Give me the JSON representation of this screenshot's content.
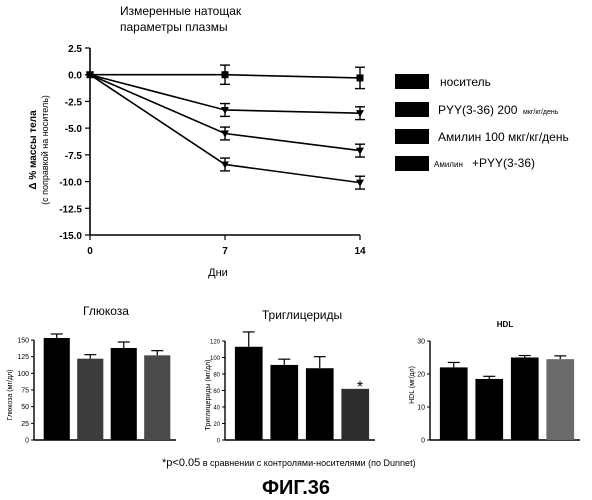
{
  "main_chart": {
    "title_line1": "Измеренные натощак",
    "title_line2": "параметры плазмы",
    "ylabel_line1": "Δ %  массы тела",
    "ylabel_line2": "(с поправкой на носитель)",
    "xlabel": "Дни",
    "legend": [
      {
        "label": "носитель",
        "small": ""
      },
      {
        "label": "PYY(3-36) 200",
        "small": "мкг/кг/день"
      },
      {
        "label": "Амилин 100 мкг/кг/день",
        "small": ""
      },
      {
        "label": "+PYY(3-36)",
        "small": "Амилин"
      }
    ]
  },
  "bar_panels": {
    "glucose": {
      "title": "Глюкоза",
      "ylabel": "Глюкоза (мг/дл)",
      "star": "*"
    },
    "triglycerides": {
      "title": "Триглицериды",
      "ylabel": "Триглицериды (мг/дл)",
      "star": "*"
    },
    "hdl": {
      "title": "HDL",
      "ylabel": "HDL      (мг/дл)"
    }
  },
  "footnote_main": "*p<0.05",
  "footnote_rest": " в сравнении с контролями-носителями (по Dunnet)",
  "figure_label": "ФИГ.36",
  "chart_data": [
    {
      "type": "line",
      "ylabel": "Δ % массы тела (с поправкой на носитель)",
      "xlabel": "Дни",
      "x": [
        0,
        7,
        14
      ],
      "xticks": [
        0,
        7,
        14
      ],
      "ylim": [
        -15.0,
        2.5
      ],
      "yticks": [
        2.5,
        0.0,
        -2.5,
        -5.0,
        -7.5,
        -10.0,
        -12.5,
        -15.0
      ],
      "series": [
        {
          "name": "носитель",
          "values": [
            0.0,
            0.0,
            -0.3
          ],
          "err": [
            0,
            0.9,
            1.0
          ],
          "marker": "square"
        },
        {
          "name": "PYY(3-36) 200 мкг/кг/день",
          "values": [
            0.0,
            -3.3,
            -3.6
          ],
          "err": [
            0,
            0.6,
            0.6
          ],
          "marker": "triangle"
        },
        {
          "name": "Амилин 100 мкг/кг/день",
          "values": [
            0.0,
            -5.5,
            -7.1
          ],
          "err": [
            0,
            0.6,
            0.6
          ],
          "marker": "triangle"
        },
        {
          "name": "Амилин +PYY(3-36)",
          "values": [
            0.0,
            -8.4,
            -10.1
          ],
          "err": [
            0,
            0.6,
            0.6
          ],
          "marker": "triangle"
        }
      ],
      "grid": false,
      "legend_position": "right"
    },
    {
      "type": "bar",
      "title": "Глюкоза",
      "ylabel": "Глюкоза (мг/дл)",
      "ylim": [
        0,
        150
      ],
      "yticks": [
        0,
        25,
        50,
        75,
        100,
        125,
        150
      ],
      "values": [
        153,
        122,
        138,
        127
      ],
      "err": [
        6,
        6,
        9,
        7
      ],
      "significant": [
        false,
        true,
        false,
        false
      ],
      "fills": [
        "#000000",
        "#3c3c3c",
        "#000000",
        "#4a4a4a"
      ]
    },
    {
      "type": "bar",
      "title": "Триглицериды",
      "ylabel": "Триглицериды (мг/дл)",
      "ylim": [
        0,
        120
      ],
      "yticks": [
        0,
        20,
        40,
        60,
        80,
        100,
        120
      ],
      "values": [
        113,
        91,
        87,
        62
      ],
      "err": [
        18,
        7,
        14,
        0
      ],
      "significant": [
        false,
        false,
        false,
        true
      ],
      "fills": [
        "#000000",
        "#000000",
        "#000000",
        "#2e2e2e"
      ]
    },
    {
      "type": "bar",
      "title": "HDL",
      "ylabel": "HDL (мг/дл)",
      "ylim": [
        0,
        30
      ],
      "yticks": [
        0,
        10,
        20,
        30
      ],
      "values": [
        22,
        18.5,
        25,
        24.5
      ],
      "err": [
        1.5,
        0.8,
        0.6,
        1.0
      ],
      "significant": [
        false,
        false,
        false,
        false
      ],
      "fills": [
        "#000000",
        "#000000",
        "#000000",
        "#6a6a6a"
      ]
    }
  ]
}
